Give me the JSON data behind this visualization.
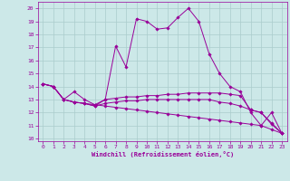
{
  "xlabel": "Windchill (Refroidissement éolien,°C)",
  "bg_color": "#cce8e8",
  "line_color": "#990099",
  "grid_color": "#aacccc",
  "x_ticks": [
    0,
    1,
    2,
    3,
    4,
    5,
    6,
    7,
    8,
    9,
    10,
    11,
    12,
    13,
    14,
    15,
    16,
    17,
    18,
    19,
    20,
    21,
    22,
    23
  ],
  "y_ticks": [
    10,
    11,
    12,
    13,
    14,
    15,
    16,
    17,
    18,
    19,
    20
  ],
  "ylim": [
    9.8,
    20.5
  ],
  "xlim": [
    -0.5,
    23.5
  ],
  "series": [
    [
      14.2,
      14.0,
      13.0,
      13.6,
      13.0,
      12.6,
      13.0,
      17.1,
      15.5,
      19.2,
      19.0,
      18.4,
      18.5,
      19.3,
      20.0,
      19.0,
      16.5,
      15.0,
      14.0,
      13.6,
      12.0,
      11.0,
      12.0,
      10.4
    ],
    [
      14.2,
      14.0,
      13.0,
      12.8,
      12.7,
      12.5,
      13.0,
      13.1,
      13.2,
      13.2,
      13.3,
      13.3,
      13.4,
      13.4,
      13.5,
      13.5,
      13.5,
      13.5,
      13.4,
      13.3,
      12.2,
      12.0,
      11.1,
      10.4
    ],
    [
      14.2,
      14.0,
      13.0,
      12.8,
      12.7,
      12.5,
      12.7,
      12.8,
      12.9,
      12.9,
      13.0,
      13.0,
      13.0,
      13.0,
      13.0,
      13.0,
      13.0,
      12.8,
      12.7,
      12.5,
      12.2,
      12.0,
      11.2,
      10.4
    ],
    [
      14.2,
      14.0,
      13.0,
      12.8,
      12.7,
      12.6,
      12.5,
      12.4,
      12.3,
      12.2,
      12.1,
      12.0,
      11.9,
      11.8,
      11.7,
      11.6,
      11.5,
      11.4,
      11.3,
      11.2,
      11.1,
      11.0,
      10.7,
      10.4
    ]
  ]
}
